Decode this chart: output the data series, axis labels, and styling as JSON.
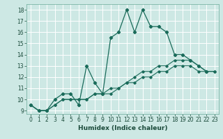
{
  "xlabel": "Humidex (Indice chaleur)",
  "bg_color": "#cde8e4",
  "grid_color": "#ffffff",
  "line_color": "#1a6b5a",
  "xlim": [
    -0.5,
    23.5
  ],
  "ylim": [
    8.7,
    18.5
  ],
  "yticks": [
    9,
    10,
    11,
    12,
    13,
    14,
    15,
    16,
    17,
    18
  ],
  "xticks": [
    0,
    1,
    2,
    3,
    4,
    5,
    6,
    7,
    8,
    9,
    10,
    11,
    12,
    13,
    14,
    15,
    16,
    17,
    18,
    19,
    20,
    21,
    22,
    23
  ],
  "series0_x": [
    0,
    1,
    2,
    3,
    4,
    5,
    6,
    7,
    8,
    9,
    10,
    11,
    12,
    13,
    14,
    15,
    16,
    17,
    18,
    19,
    20,
    21,
    22
  ],
  "series0_y": [
    9.5,
    9.0,
    9.0,
    10.0,
    10.5,
    10.5,
    9.5,
    13.0,
    11.5,
    10.5,
    15.5,
    16.0,
    18.0,
    16.0,
    18.0,
    16.5,
    16.5,
    16.0,
    14.0,
    14.0,
    13.5,
    13.0,
    12.5
  ],
  "series1_x": [
    0,
    1,
    2,
    3,
    4,
    5,
    6,
    7,
    8,
    9,
    10,
    11,
    12,
    13,
    14,
    15,
    16,
    17,
    18,
    19,
    20,
    21,
    22,
    23
  ],
  "series1_y": [
    9.5,
    9.0,
    9.0,
    9.5,
    10.0,
    10.0,
    10.0,
    10.0,
    10.5,
    10.5,
    10.5,
    11.0,
    11.5,
    11.5,
    12.0,
    12.0,
    12.5,
    12.5,
    13.0,
    13.0,
    13.0,
    12.5,
    12.5,
    12.5
  ],
  "series2_x": [
    0,
    1,
    2,
    3,
    4,
    5,
    6,
    7,
    8,
    9,
    10,
    11,
    12,
    13,
    14,
    15,
    16,
    17,
    18,
    19,
    20,
    21,
    22,
    23
  ],
  "series2_y": [
    9.5,
    9.0,
    9.0,
    9.5,
    10.0,
    10.0,
    10.0,
    10.0,
    10.5,
    10.5,
    11.0,
    11.0,
    11.5,
    12.0,
    12.5,
    12.5,
    13.0,
    13.0,
    13.5,
    13.5,
    13.5,
    13.0,
    12.5,
    12.5
  ],
  "xlabel_fontsize": 6.5,
  "tick_fontsize": 5.5
}
